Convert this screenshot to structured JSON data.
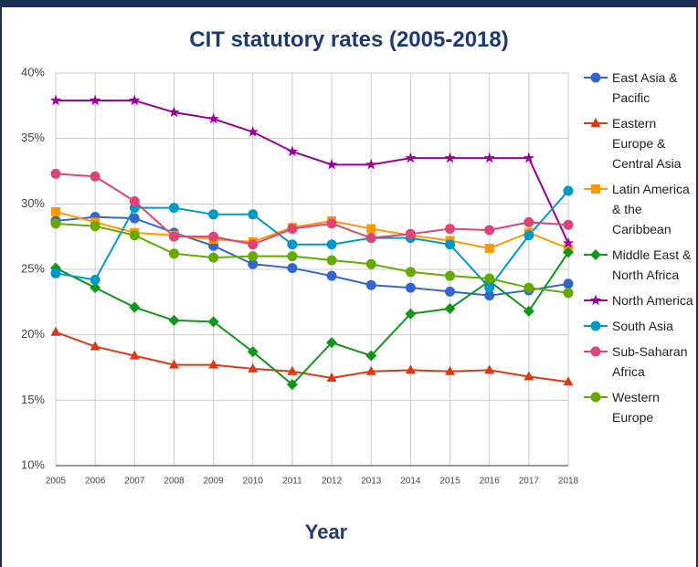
{
  "chart_data": {
    "type": "line",
    "title": "CIT statutory rates (2005-2018)",
    "x_label": "Year",
    "categories": [
      "2005",
      "2006",
      "2007",
      "2008",
      "2009",
      "2010",
      "2011",
      "2012",
      "2013",
      "2014",
      "2015",
      "2016",
      "2017",
      "2018"
    ],
    "ylim": [
      10,
      40
    ],
    "yticks": [
      {
        "value": 10,
        "label": "10%"
      },
      {
        "value": 15,
        "label": "15%"
      },
      {
        "value": 20,
        "label": "20%"
      },
      {
        "value": 25,
        "label": "25%"
      },
      {
        "value": 30,
        "label": "30%"
      },
      {
        "value": 35,
        "label": "35%"
      },
      {
        "value": 40,
        "label": "40%"
      }
    ],
    "grid": true,
    "legend": "right",
    "series": [
      {
        "name": "East Asia & Pacific",
        "color": "#3366cc",
        "marker": "circle",
        "values": [
          28.7,
          29.0,
          28.9,
          27.8,
          26.8,
          25.4,
          25.1,
          24.5,
          23.8,
          23.6,
          23.3,
          23.0,
          23.4,
          23.9
        ]
      },
      {
        "name": "Eastern Europe & Central Asia",
        "color": "#dc3912",
        "marker": "triangle",
        "values": [
          20.2,
          19.1,
          18.4,
          17.7,
          17.7,
          17.4,
          17.2,
          16.7,
          17.2,
          17.3,
          17.2,
          17.3,
          16.8,
          16.4
        ]
      },
      {
        "name": "Latin America & the Caribbean",
        "color": "#ff9900",
        "marker": "square",
        "values": [
          29.4,
          28.6,
          27.8,
          27.6,
          27.3,
          27.1,
          28.2,
          28.7,
          28.1,
          27.6,
          27.2,
          26.6,
          27.8,
          26.6
        ]
      },
      {
        "name": "Middle East & North Africa",
        "color": "#109618",
        "marker": "diamond",
        "values": [
          25.1,
          23.6,
          22.1,
          21.1,
          21.0,
          18.7,
          16.2,
          19.4,
          18.4,
          21.6,
          22.0,
          24.1,
          21.8,
          26.3
        ]
      },
      {
        "name": "North America",
        "color": "#990099",
        "marker": "star",
        "values": [
          37.9,
          37.9,
          37.9,
          37.0,
          36.5,
          35.5,
          34.0,
          33.0,
          33.0,
          33.5,
          33.5,
          33.5,
          33.5,
          27.0
        ]
      },
      {
        "name": "South Asia",
        "color": "#0099c6",
        "marker": "circle",
        "values": [
          24.7,
          24.2,
          29.7,
          29.7,
          29.2,
          29.2,
          26.9,
          26.9,
          27.4,
          27.4,
          26.9,
          23.6,
          27.6,
          31.0
        ]
      },
      {
        "name": "Sub-Saharan Africa",
        "color": "#dd4477",
        "marker": "circle",
        "values": [
          32.3,
          32.1,
          30.2,
          27.5,
          27.5,
          26.9,
          28.1,
          28.5,
          27.4,
          27.7,
          28.1,
          28.0,
          28.6,
          28.4
        ]
      },
      {
        "name": "Western Europe",
        "color": "#66aa00",
        "marker": "circle",
        "values": [
          28.5,
          28.3,
          27.6,
          26.2,
          25.9,
          26.0,
          26.0,
          25.7,
          25.4,
          24.8,
          24.5,
          24.3,
          23.6,
          23.2
        ]
      }
    ]
  }
}
